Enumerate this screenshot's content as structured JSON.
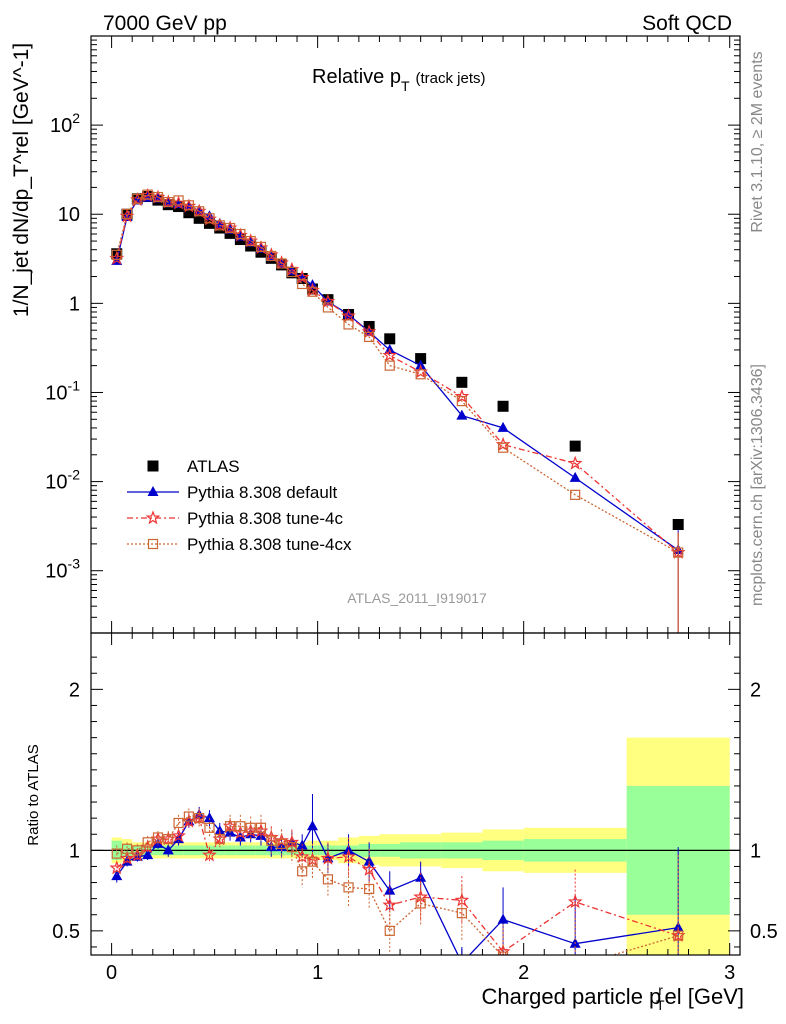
{
  "header": {
    "left": "7000 GeV pp",
    "right": "Soft QCD"
  },
  "side_labels": {
    "rivet": "Rivet 3.1.10, ≥ 2M events",
    "mcplots": "mcplots.cern.ch [arXiv:1306.3436]"
  },
  "chart_data": [
    {
      "type": "scatter",
      "title": "Relative p_T (track jets)",
      "title_main": "Relative p",
      "title_sub": "T",
      "title_extra": "(track jets)",
      "analysis_id": "ATLAS_2011_I919017",
      "ylabel": "1/N_jet dN/dp_T^rel [GeV^-1]",
      "yscale": "log",
      "xlim": [
        -0.1,
        3.05
      ],
      "ylim": [
        0.0002,
        1000
      ],
      "ytick_labels": [
        "10^-3",
        "10^-2",
        "10^-1",
        "1",
        "10",
        "10^2"
      ],
      "legend_position": "lower-left",
      "x": [
        0.025,
        0.075,
        0.125,
        0.175,
        0.225,
        0.275,
        0.325,
        0.375,
        0.425,
        0.475,
        0.525,
        0.575,
        0.625,
        0.675,
        0.725,
        0.775,
        0.825,
        0.875,
        0.925,
        0.975,
        1.05,
        1.15,
        1.25,
        1.35,
        1.5,
        1.7,
        1.9,
        2.25,
        2.75
      ],
      "series": [
        {
          "name": "ATLAS",
          "color": "#000000",
          "marker": "square",
          "values": [
            3.6,
            10.0,
            14.9,
            15.8,
            14.4,
            12.8,
            12.2,
            10.4,
            9.0,
            7.9,
            7.0,
            6.1,
            5.2,
            4.4,
            3.75,
            3.2,
            2.7,
            2.2,
            1.9,
            1.45,
            1.1,
            0.75,
            0.55,
            0.4,
            0.24,
            0.13,
            0.07,
            0.025,
            0.0033
          ]
        },
        {
          "name": "Pythia 8.308 default",
          "color": "#0000cc",
          "marker": "triangle",
          "values": [
            3.0,
            9.3,
            14.3,
            15.3,
            15.0,
            13.3,
            13.0,
            12.2,
            11.0,
            9.5,
            7.8,
            6.7,
            5.6,
            4.8,
            4.1,
            3.3,
            2.75,
            2.3,
            1.95,
            1.6,
            1.05,
            0.75,
            0.48,
            0.3,
            0.2,
            0.055,
            0.04,
            0.011,
            0.0017
          ]
        },
        {
          "name": "Pythia 8.308 tune-4c",
          "color": "#ee3333",
          "marker": "star",
          "values": [
            3.2,
            9.5,
            14.5,
            16.2,
            15.5,
            13.7,
            13.3,
            12.3,
            10.8,
            8.8,
            7.5,
            7.0,
            5.8,
            5.0,
            4.2,
            3.5,
            2.85,
            2.4,
            1.95,
            1.4,
            1.05,
            0.72,
            0.48,
            0.26,
            0.17,
            0.09,
            0.026,
            0.016,
            0.0016
          ]
        },
        {
          "name": "Pythia 8.308 tune-4cx",
          "color": "#cc6633",
          "marker": "open-square",
          "values": [
            3.5,
            10.1,
            14.9,
            16.6,
            15.6,
            13.7,
            14.3,
            12.6,
            10.8,
            9.0,
            7.5,
            7.0,
            6.0,
            5.0,
            4.3,
            3.4,
            2.8,
            2.25,
            1.65,
            1.35,
            0.9,
            0.58,
            0.42,
            0.2,
            0.16,
            0.08,
            0.024,
            0.0071,
            0.0016
          ]
        }
      ]
    },
    {
      "type": "scatter",
      "ylabel": "Ratio to ATLAS",
      "xlabel": "Charged particle p_T^rel [GeV]",
      "xlabel_main": "Charged particle p",
      "xlabel_sub": "T",
      "xlabel_sup": "r",
      "xlabel_tail": "el [GeV]",
      "xlim": [
        -0.1,
        3.05
      ],
      "ylim": [
        0.35,
        2.35
      ],
      "xtick_labels": [
        "0",
        "1",
        "2",
        "3"
      ],
      "ytick_labels": [
        "0.5",
        "1",
        "2"
      ],
      "uncertainty_bands": {
        "edges": [
          0,
          0.05,
          0.1,
          0.15,
          0.2,
          0.25,
          0.3,
          0.35,
          0.4,
          0.45,
          0.5,
          0.55,
          0.6,
          0.65,
          0.7,
          0.75,
          0.8,
          0.85,
          0.9,
          0.95,
          1.0,
          1.1,
          1.2,
          1.3,
          1.4,
          1.6,
          1.8,
          2.0,
          2.5,
          3.0
        ],
        "stat_color": "#99ff99",
        "total_color": "#ffff80",
        "stat": [
          0.06,
          0.04,
          0.03,
          0.03,
          0.03,
          0.03,
          0.03,
          0.03,
          0.03,
          0.03,
          0.03,
          0.03,
          0.03,
          0.03,
          0.03,
          0.03,
          0.03,
          0.03,
          0.03,
          0.03,
          0.03,
          0.03,
          0.04,
          0.04,
          0.05,
          0.05,
          0.06,
          0.07,
          0.4
        ],
        "total": [
          0.08,
          0.07,
          0.05,
          0.05,
          0.05,
          0.05,
          0.05,
          0.05,
          0.05,
          0.05,
          0.05,
          0.05,
          0.05,
          0.05,
          0.05,
          0.05,
          0.05,
          0.05,
          0.05,
          0.06,
          0.06,
          0.08,
          0.09,
          0.1,
          0.1,
          0.11,
          0.13,
          0.14,
          0.7
        ]
      },
      "series": [
        {
          "name": "Pythia 8.308 default",
          "color": "#0000cc",
          "values": [
            0.84,
            0.93,
            0.96,
            0.97,
            1.04,
            1.0,
            1.07,
            1.18,
            1.22,
            1.2,
            1.12,
            1.11,
            1.08,
            1.1,
            1.09,
            1.02,
            1.02,
            1.05,
            1.03,
            1.15,
            0.95,
            1.0,
            0.93,
            0.75,
            0.83,
            0.3,
            0.57,
            0.42,
            0.52
          ],
          "errors": [
            0.04,
            0.03,
            0.03,
            0.03,
            0.03,
            0.04,
            0.04,
            0.04,
            0.05,
            0.05,
            0.05,
            0.05,
            0.05,
            0.05,
            0.06,
            0.06,
            0.06,
            0.07,
            0.07,
            0.2,
            0.09,
            0.1,
            0.12,
            0.12,
            0.1,
            0.1,
            0.2,
            0.3,
            0.5
          ]
        },
        {
          "name": "Pythia 8.308 tune-4c",
          "color": "#ee3333",
          "values": [
            0.89,
            0.95,
            0.97,
            1.02,
            1.07,
            1.07,
            1.09,
            1.18,
            1.2,
            0.97,
            1.07,
            1.15,
            1.11,
            1.12,
            1.12,
            1.08,
            1.06,
            1.05,
            0.96,
            0.94,
            0.95,
            0.96,
            0.88,
            0.66,
            0.71,
            0.69,
            0.37,
            0.68,
            0.47
          ],
          "errors": [
            0.04,
            0.03,
            0.03,
            0.03,
            0.04,
            0.04,
            0.04,
            0.05,
            0.05,
            0.05,
            0.05,
            0.05,
            0.06,
            0.06,
            0.06,
            0.07,
            0.07,
            0.08,
            0.08,
            0.1,
            0.1,
            0.12,
            0.13,
            0.14,
            0.15,
            0.15,
            0.15,
            0.2,
            0.5
          ]
        },
        {
          "name": "Pythia 8.308 tune-4cx",
          "color": "#cc6633",
          "values": [
            0.98,
            1.01,
            1.0,
            1.05,
            1.08,
            1.07,
            1.17,
            1.21,
            1.2,
            1.14,
            1.07,
            1.15,
            1.15,
            1.14,
            1.14,
            1.06,
            1.04,
            1.02,
            0.87,
            0.93,
            0.82,
            0.77,
            0.76,
            0.5,
            0.67,
            0.61,
            0.34,
            0.28,
            0.47
          ],
          "errors": [
            0.05,
            0.04,
            0.04,
            0.04,
            0.04,
            0.05,
            0.05,
            0.05,
            0.06,
            0.06,
            0.06,
            0.07,
            0.07,
            0.07,
            0.08,
            0.08,
            0.09,
            0.1,
            0.1,
            0.11,
            0.11,
            0.12,
            0.12,
            0.13,
            0.13,
            0.17,
            0.2,
            0.3,
            0.5
          ]
        }
      ]
    }
  ]
}
